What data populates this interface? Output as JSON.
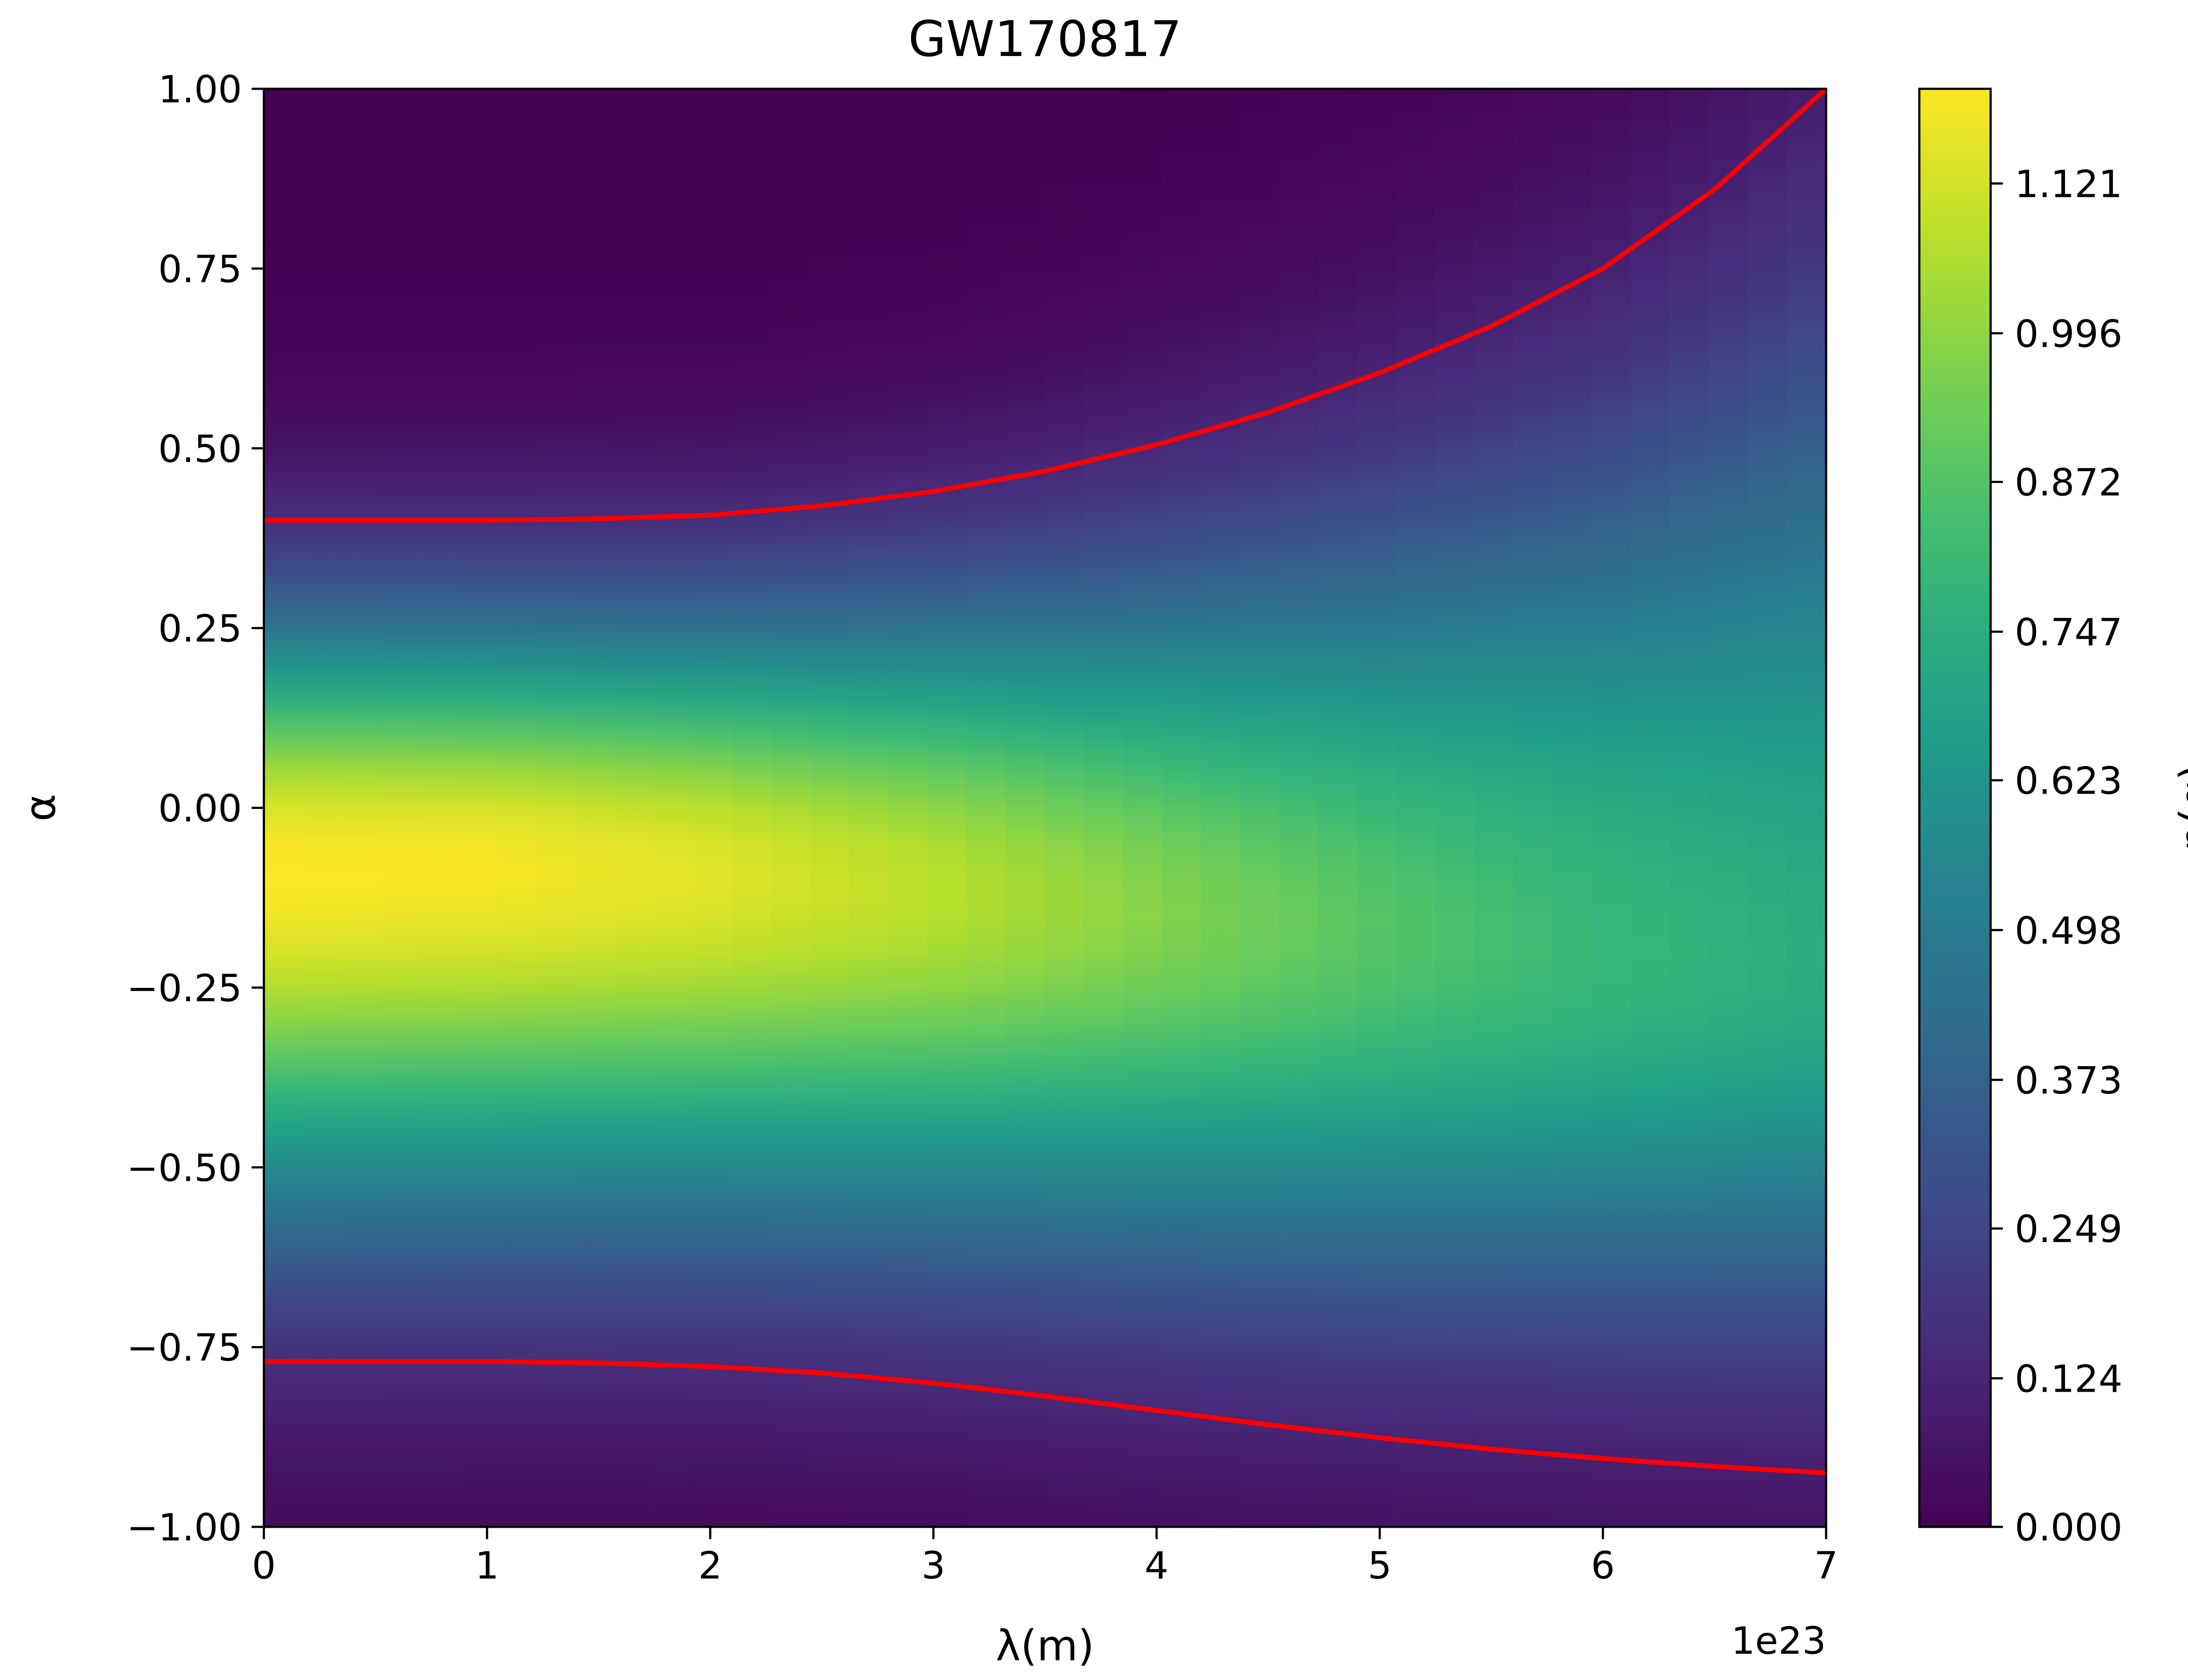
{
  "chart_data": {
    "type": "heatmap",
    "title": "GW170817",
    "xlabel": "λ(m)",
    "ylabel": "α",
    "x_offset_label": "1e23",
    "colorbar_label": "p(α)",
    "colormap": "viridis",
    "xlim": [
      0,
      7
    ],
    "ylim": [
      -1,
      1
    ],
    "x_ticks": [
      0,
      1,
      2,
      3,
      4,
      5,
      6,
      7
    ],
    "x_tick_labels": [
      "0",
      "1",
      "2",
      "3",
      "4",
      "5",
      "6",
      "7"
    ],
    "y_ticks": [
      1.0,
      0.75,
      0.5,
      0.25,
      0.0,
      -0.25,
      -0.5,
      -0.75,
      -1.0
    ],
    "y_tick_labels": [
      "1.00",
      "0.75",
      "0.50",
      "0.25",
      "0.00",
      "−0.25",
      "−0.50",
      "−0.75",
      "−1.00"
    ],
    "colorbar_range": [
      0,
      1.2
    ],
    "colorbar_ticks": [
      0.0,
      0.124,
      0.249,
      0.373,
      0.498,
      0.623,
      0.747,
      0.872,
      0.996,
      1.121
    ],
    "colorbar_tick_labels": [
      "0.000",
      "0.124",
      "0.249",
      "0.373",
      "0.498",
      "0.623",
      "0.747",
      "0.872",
      "0.996",
      "1.121"
    ],
    "density_peak": {
      "x": [
        0,
        1,
        2,
        3,
        4,
        5,
        6,
        7
      ],
      "alpha_center": [
        -0.08,
        -0.08,
        -0.09,
        -0.11,
        -0.14,
        -0.17,
        -0.2,
        -0.22
      ],
      "peak_value": [
        1.2,
        1.19,
        1.15,
        1.08,
        0.98,
        0.88,
        0.8,
        0.74
      ]
    },
    "series": [
      {
        "color": "#ff0000",
        "x": [
          0,
          0.5,
          1,
          1.5,
          2,
          2.5,
          3,
          3.5,
          4,
          4.5,
          5,
          5.5,
          6,
          6.5,
          7
        ],
        "y": [
          0.4,
          0.4,
          0.4,
          0.402,
          0.407,
          0.42,
          0.44,
          0.468,
          0.505,
          0.55,
          0.605,
          0.67,
          0.75,
          0.86,
          1.0
        ]
      },
      {
        "color": "#ff0000",
        "x": [
          0,
          0.5,
          1,
          1.5,
          2,
          2.5,
          3,
          3.5,
          4,
          4.5,
          5,
          5.5,
          6,
          6.5,
          7
        ],
        "y": [
          -0.77,
          -0.77,
          -0.77,
          -0.772,
          -0.777,
          -0.786,
          -0.8,
          -0.818,
          -0.838,
          -0.858,
          -0.876,
          -0.892,
          -0.905,
          -0.916,
          -0.925
        ]
      }
    ]
  }
}
